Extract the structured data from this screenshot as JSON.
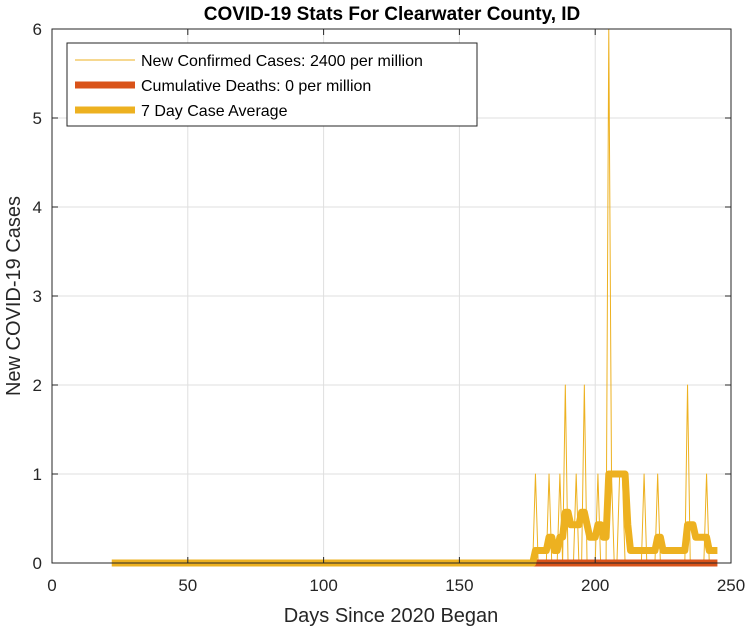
{
  "chart_data": {
    "type": "line",
    "title": "COVID-19 Stats For Clearwater County, ID",
    "xlabel": "Days Since 2020 Began",
    "ylabel": "New COVID-19 Cases",
    "xlim": [
      0,
      250
    ],
    "ylim": [
      0,
      6
    ],
    "xticks": [
      0,
      50,
      100,
      150,
      200,
      250
    ],
    "yticks": [
      0,
      1,
      2,
      3,
      4,
      5,
      6
    ],
    "grid": true,
    "legend_position": "top-left",
    "series": [
      {
        "name": "New Confirmed Cases: 2400 per million",
        "color": "#EDB120",
        "style": "thin",
        "x": [
          22,
          176,
          177,
          178,
          179,
          180,
          181,
          182,
          183,
          184,
          185,
          186,
          187,
          188,
          189,
          190,
          191,
          192,
          193,
          194,
          195,
          196,
          197,
          198,
          199,
          200,
          201,
          202,
          203,
          204,
          205,
          206,
          207,
          208,
          209,
          210,
          211,
          212,
          213,
          214,
          215,
          216,
          217,
          218,
          219,
          220,
          221,
          222,
          223,
          224,
          225,
          226,
          227,
          228,
          229,
          230,
          231,
          232,
          233,
          234,
          235,
          236,
          237,
          238,
          239,
          240,
          241,
          242,
          243,
          244,
          245
        ],
        "y": [
          0,
          0,
          0,
          1,
          0,
          0,
          0,
          0,
          1,
          0,
          0,
          0,
          1,
          0,
          2,
          0,
          0,
          0,
          1,
          0,
          0,
          2,
          0,
          0,
          0,
          0,
          1,
          0,
          0,
          0,
          6,
          1,
          0,
          0,
          1,
          1,
          0,
          0,
          0,
          0,
          0,
          0,
          0,
          1,
          0,
          0,
          0,
          0,
          1,
          0,
          0,
          0,
          0,
          0,
          0,
          0,
          0,
          0,
          0,
          2,
          0,
          0,
          0,
          0,
          0,
          0,
          1,
          0,
          0,
          0,
          0
        ]
      },
      {
        "name": "Cumulative Deaths: 0 per million",
        "color": "#D95319",
        "style": "thick",
        "x": [
          177,
          245
        ],
        "y": [
          0,
          0
        ]
      },
      {
        "name": "7 Day Case Average",
        "color": "#EDB120",
        "style": "thick",
        "x": [
          22,
          176,
          177,
          178,
          179,
          180,
          181,
          182,
          183,
          184,
          185,
          186,
          187,
          188,
          189,
          190,
          191,
          192,
          193,
          194,
          195,
          196,
          197,
          198,
          199,
          200,
          201,
          202,
          203,
          204,
          205,
          206,
          207,
          208,
          209,
          210,
          211,
          212,
          213,
          214,
          215,
          216,
          217,
          218,
          219,
          220,
          221,
          222,
          223,
          224,
          225,
          226,
          227,
          228,
          229,
          230,
          231,
          232,
          233,
          234,
          235,
          236,
          237,
          238,
          239,
          240,
          241,
          242,
          243,
          244,
          245
        ],
        "y": [
          0,
          0,
          0,
          0.14,
          0.14,
          0.14,
          0.14,
          0.14,
          0.29,
          0.29,
          0.14,
          0.14,
          0.29,
          0.29,
          0.57,
          0.57,
          0.43,
          0.43,
          0.43,
          0.43,
          0.57,
          0.57,
          0.43,
          0.29,
          0.29,
          0.29,
          0.43,
          0.43,
          0.29,
          0.29,
          1,
          1,
          1,
          1,
          1,
          1,
          1,
          0.43,
          0.14,
          0.14,
          0.14,
          0.14,
          0.14,
          0.14,
          0.14,
          0.14,
          0.14,
          0.14,
          0.29,
          0.29,
          0.14,
          0.14,
          0.14,
          0.14,
          0.14,
          0.14,
          0.14,
          0.14,
          0.14,
          0.43,
          0.43,
          0.43,
          0.29,
          0.29,
          0.29,
          0.29,
          0.29,
          0.14,
          0.14,
          0.14,
          0.14
        ]
      }
    ]
  }
}
